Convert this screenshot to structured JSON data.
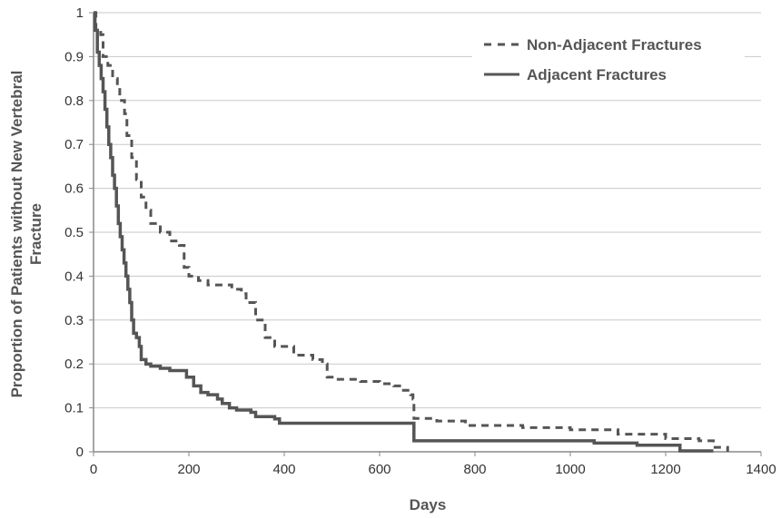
{
  "chart_data": {
    "type": "line",
    "step": true,
    "title": "",
    "xlabel": "Days",
    "ylabel_lines": [
      "Proportion of Patients without New Vertebral",
      "Fracture"
    ],
    "xlim": [
      0,
      1400
    ],
    "ylim": [
      0,
      1
    ],
    "x_ticks": [
      0,
      200,
      400,
      600,
      800,
      1000,
      1200,
      1400
    ],
    "y_ticks": [
      0,
      0.1,
      0.2,
      0.3,
      0.4,
      0.5,
      0.6,
      0.7,
      0.8,
      0.9,
      1
    ],
    "y_tick_labels": [
      "0",
      "0.1",
      "0.2",
      "0.3",
      "0.4",
      "0.5",
      "0.6",
      "0.7",
      "0.8",
      "0.9",
      "1"
    ],
    "grid": "horizontal",
    "legend_position": "top-right",
    "series": [
      {
        "name": "Non-Adjacent Fractures",
        "style": "dashed",
        "color": "#555555",
        "points": [
          [
            0,
            1.0
          ],
          [
            5,
            0.96
          ],
          [
            15,
            0.95
          ],
          [
            20,
            0.9
          ],
          [
            30,
            0.88
          ],
          [
            40,
            0.85
          ],
          [
            50,
            0.83
          ],
          [
            55,
            0.8
          ],
          [
            65,
            0.77
          ],
          [
            70,
            0.72
          ],
          [
            80,
            0.67
          ],
          [
            90,
            0.62
          ],
          [
            100,
            0.58
          ],
          [
            110,
            0.55
          ],
          [
            120,
            0.52
          ],
          [
            140,
            0.5
          ],
          [
            160,
            0.48
          ],
          [
            180,
            0.47
          ],
          [
            190,
            0.42
          ],
          [
            200,
            0.4
          ],
          [
            220,
            0.39
          ],
          [
            240,
            0.38
          ],
          [
            270,
            0.38
          ],
          [
            290,
            0.37
          ],
          [
            310,
            0.36
          ],
          [
            320,
            0.34
          ],
          [
            340,
            0.3
          ],
          [
            360,
            0.26
          ],
          [
            380,
            0.24
          ],
          [
            420,
            0.22
          ],
          [
            460,
            0.21
          ],
          [
            480,
            0.2
          ],
          [
            490,
            0.17
          ],
          [
            510,
            0.165
          ],
          [
            560,
            0.16
          ],
          [
            600,
            0.155
          ],
          [
            630,
            0.15
          ],
          [
            650,
            0.14
          ],
          [
            665,
            0.13
          ],
          [
            670,
            0.12
          ],
          [
            672,
            0.076
          ],
          [
            720,
            0.07
          ],
          [
            780,
            0.06
          ],
          [
            900,
            0.055
          ],
          [
            1000,
            0.05
          ],
          [
            1100,
            0.04
          ],
          [
            1200,
            0.03
          ],
          [
            1270,
            0.025
          ],
          [
            1300,
            0.01
          ],
          [
            1330,
            0.0
          ]
        ]
      },
      {
        "name": "Adjacent Fractures",
        "style": "solid",
        "color": "#555555",
        "points": [
          [
            0,
            1.0
          ],
          [
            3,
            0.96
          ],
          [
            8,
            0.91
          ],
          [
            12,
            0.88
          ],
          [
            16,
            0.85
          ],
          [
            20,
            0.82
          ],
          [
            24,
            0.78
          ],
          [
            28,
            0.74
          ],
          [
            32,
            0.7
          ],
          [
            36,
            0.67
          ],
          [
            40,
            0.63
          ],
          [
            44,
            0.6
          ],
          [
            48,
            0.56
          ],
          [
            52,
            0.52
          ],
          [
            56,
            0.49
          ],
          [
            60,
            0.46
          ],
          [
            64,
            0.43
          ],
          [
            68,
            0.4
          ],
          [
            72,
            0.37
          ],
          [
            76,
            0.34
          ],
          [
            80,
            0.3
          ],
          [
            84,
            0.27
          ],
          [
            90,
            0.26
          ],
          [
            96,
            0.24
          ],
          [
            100,
            0.21
          ],
          [
            110,
            0.2
          ],
          [
            120,
            0.195
          ],
          [
            140,
            0.19
          ],
          [
            160,
            0.185
          ],
          [
            185,
            0.185
          ],
          [
            195,
            0.17
          ],
          [
            210,
            0.15
          ],
          [
            225,
            0.135
          ],
          [
            240,
            0.13
          ],
          [
            260,
            0.12
          ],
          [
            270,
            0.11
          ],
          [
            285,
            0.1
          ],
          [
            300,
            0.095
          ],
          [
            330,
            0.09
          ],
          [
            340,
            0.08
          ],
          [
            380,
            0.075
          ],
          [
            390,
            0.065
          ],
          [
            670,
            0.065
          ],
          [
            672,
            0.025
          ],
          [
            1000,
            0.025
          ],
          [
            1050,
            0.02
          ],
          [
            1140,
            0.015
          ],
          [
            1210,
            0.015
          ],
          [
            1230,
            0.002
          ],
          [
            1300,
            0.002
          ]
        ]
      }
    ]
  }
}
